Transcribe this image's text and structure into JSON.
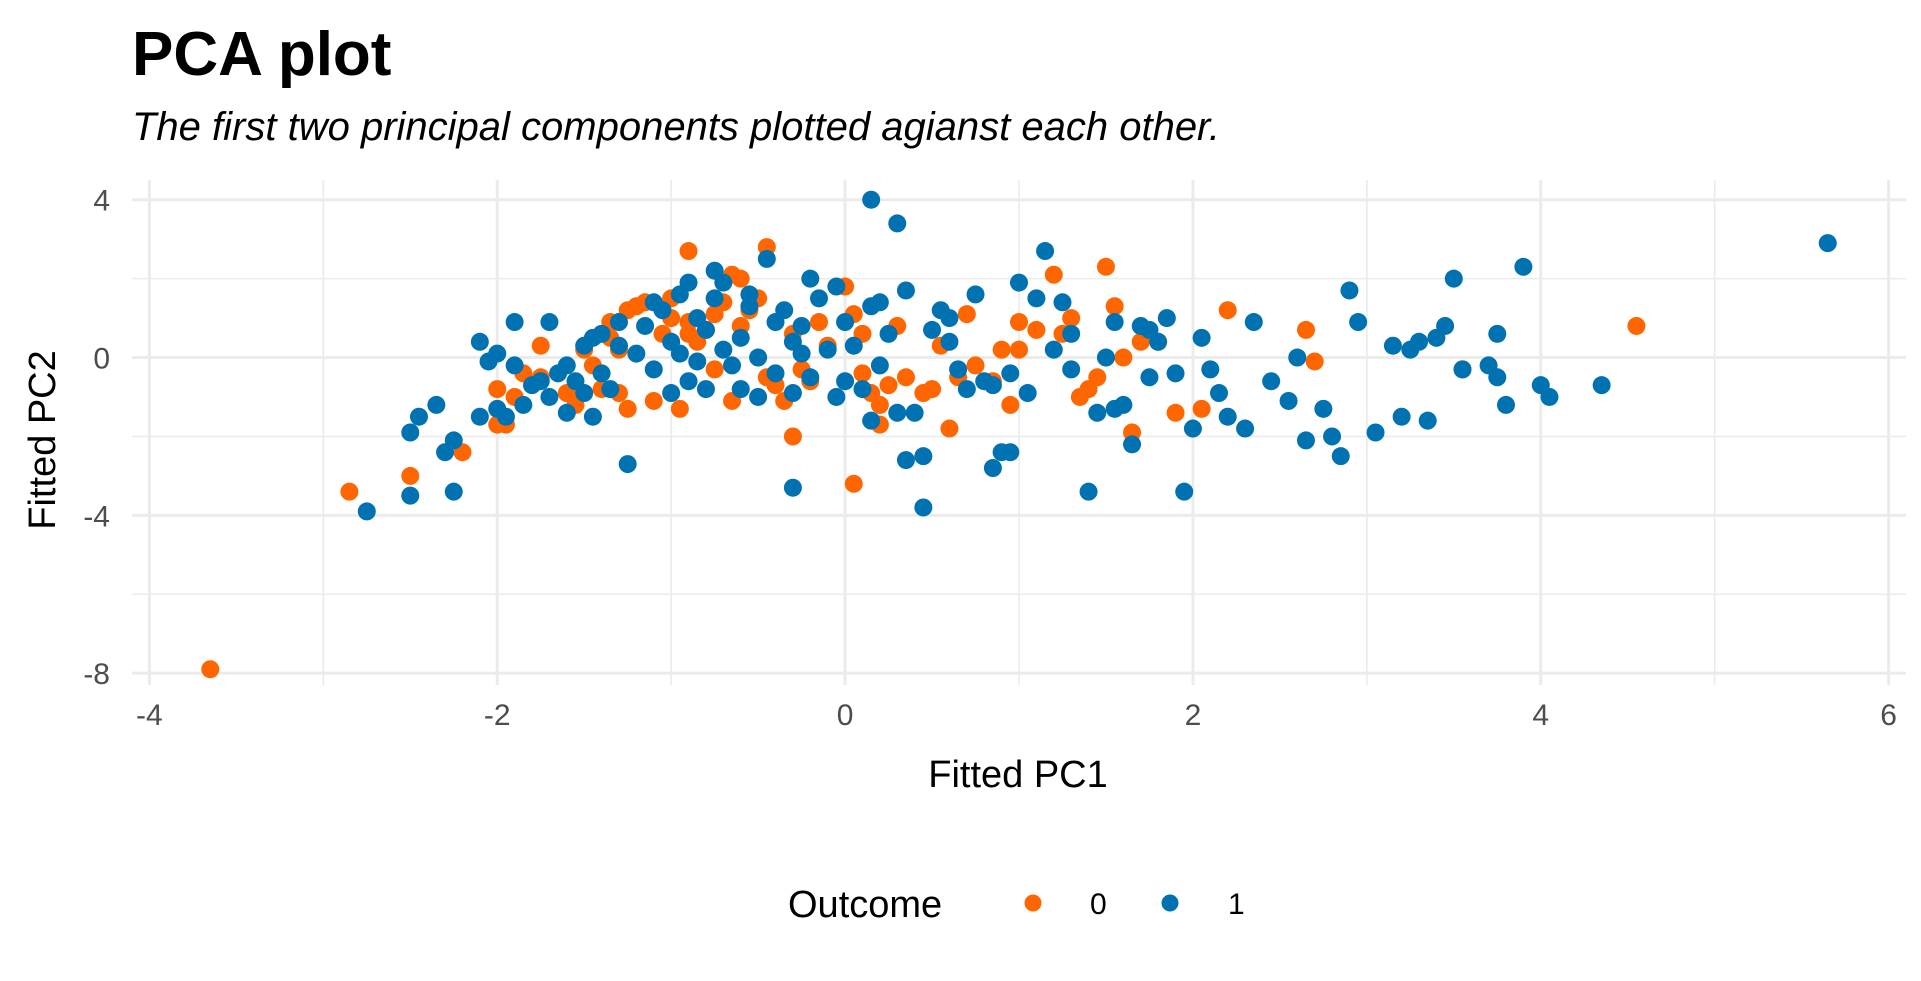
{
  "chart_data": {
    "type": "scatter",
    "title": "PCA plot",
    "subtitle": "The first two principal components plotted agianst each other.",
    "xlabel": "Fitted PC1",
    "ylabel": "Fitted PC2",
    "xlim": [
      -4.1,
      6.1
    ],
    "ylim": [
      -8.3,
      4.5
    ],
    "x_ticks": [
      -4,
      -2,
      0,
      2,
      4,
      6
    ],
    "y_ticks": [
      4,
      0,
      -4,
      -8
    ],
    "x_tick_labels": [
      "-4",
      "-2",
      "0",
      "2",
      "4",
      "6"
    ],
    "y_tick_labels": [
      "4",
      "0",
      "-4",
      "-8"
    ],
    "grid": true,
    "legend": {
      "title": "Outcome",
      "position": "bottom",
      "entries": [
        {
          "label": "0",
          "color": "#ff6600"
        },
        {
          "label": "1",
          "color": "#0072b2"
        }
      ]
    },
    "series": [
      {
        "name": "0",
        "color": "#ff6600",
        "points": [
          [
            -3.65,
            -7.9
          ],
          [
            -2.85,
            -3.4
          ],
          [
            -2.5,
            -3.0
          ],
          [
            -2.2,
            -2.4
          ],
          [
            -2.0,
            -1.7
          ],
          [
            -1.95,
            -1.7
          ],
          [
            -1.85,
            -0.4
          ],
          [
            -1.75,
            -0.5
          ],
          [
            -1.75,
            0.3
          ],
          [
            -1.6,
            -0.9
          ],
          [
            -1.55,
            -1.2
          ],
          [
            -1.45,
            -0.2
          ],
          [
            -1.4,
            -0.8
          ],
          [
            -1.35,
            0.5
          ],
          [
            -1.3,
            0.2
          ],
          [
            -1.3,
            -0.9
          ],
          [
            -1.25,
            -1.3
          ],
          [
            -1.25,
            1.2
          ],
          [
            -1.2,
            1.3
          ],
          [
            -1.15,
            1.4
          ],
          [
            -1.1,
            -1.1
          ],
          [
            -1.05,
            0.6
          ],
          [
            -1.0,
            1.0
          ],
          [
            -0.95,
            -1.3
          ],
          [
            -0.9,
            0.6
          ],
          [
            -0.9,
            0.9
          ],
          [
            -0.85,
            0.4
          ],
          [
            -0.8,
            0.7
          ],
          [
            -0.75,
            1.1
          ],
          [
            -0.75,
            -0.3
          ],
          [
            -0.7,
            1.4
          ],
          [
            -0.65,
            -1.1
          ],
          [
            -0.6,
            0.8
          ],
          [
            -0.55,
            1.2
          ],
          [
            -0.5,
            1.5
          ],
          [
            -0.45,
            -0.5
          ],
          [
            -0.4,
            -0.7
          ],
          [
            -0.35,
            -1.1
          ],
          [
            -0.3,
            0.6
          ],
          [
            -0.25,
            -0.3
          ],
          [
            -0.2,
            -0.6
          ],
          [
            -0.15,
            0.9
          ],
          [
            -0.1,
            0.3
          ],
          [
            0.0,
            1.8
          ],
          [
            0.05,
            1.1
          ],
          [
            0.1,
            0.6
          ],
          [
            0.1,
            -0.4
          ],
          [
            0.15,
            -0.9
          ],
          [
            0.2,
            -1.2
          ],
          [
            0.25,
            -0.7
          ],
          [
            0.3,
            0.8
          ],
          [
            0.35,
            -0.5
          ],
          [
            0.45,
            -0.9
          ],
          [
            0.5,
            -0.8
          ],
          [
            0.55,
            0.3
          ],
          [
            0.6,
            -1.8
          ],
          [
            0.65,
            -0.5
          ],
          [
            0.7,
            1.1
          ],
          [
            0.75,
            -0.2
          ],
          [
            0.85,
            -0.6
          ],
          [
            0.9,
            0.2
          ],
          [
            0.95,
            -1.2
          ],
          [
            1.0,
            0.9
          ],
          [
            1.0,
            0.2
          ],
          [
            1.1,
            0.7
          ],
          [
            1.2,
            2.1
          ],
          [
            1.25,
            0.6
          ],
          [
            1.3,
            1.0
          ],
          [
            1.35,
            -1.0
          ],
          [
            1.4,
            -0.8
          ],
          [
            1.45,
            -0.5
          ],
          [
            1.5,
            2.3
          ],
          [
            1.55,
            1.3
          ],
          [
            1.6,
            0.0
          ],
          [
            1.65,
            -1.9
          ],
          [
            1.7,
            0.4
          ],
          [
            1.8,
            0.4
          ],
          [
            1.9,
            -1.4
          ],
          [
            2.05,
            -1.3
          ],
          [
            2.2,
            1.2
          ],
          [
            2.65,
            0.7
          ],
          [
            2.7,
            -0.1
          ],
          [
            3.55,
            -0.3
          ],
          [
            4.55,
            0.8
          ],
          [
            -0.6,
            2.0
          ],
          [
            -0.45,
            2.8
          ],
          [
            -0.9,
            2.7
          ],
          [
            -0.65,
            2.1
          ],
          [
            -0.3,
            -2.0
          ],
          [
            0.05,
            -3.2
          ],
          [
            0.2,
            -1.7
          ],
          [
            -1.0,
            1.5
          ],
          [
            -1.35,
            0.9
          ],
          [
            -1.5,
            0.2
          ],
          [
            -2.0,
            -0.8
          ],
          [
            -1.9,
            -1.0
          ]
        ]
      },
      {
        "name": "1",
        "color": "#0072b2",
        "points": [
          [
            -2.75,
            -3.9
          ],
          [
            -2.5,
            -3.5
          ],
          [
            -2.5,
            -1.9
          ],
          [
            -2.45,
            -1.5
          ],
          [
            -2.35,
            -1.2
          ],
          [
            -2.3,
            -2.4
          ],
          [
            -2.25,
            -2.1
          ],
          [
            -2.25,
            -3.4
          ],
          [
            -2.1,
            -1.5
          ],
          [
            -2.1,
            0.4
          ],
          [
            -2.05,
            -0.1
          ],
          [
            -2.0,
            0.1
          ],
          [
            -2.0,
            -1.3
          ],
          [
            -1.95,
            -1.5
          ],
          [
            -1.9,
            -0.2
          ],
          [
            -1.9,
            0.9
          ],
          [
            -1.85,
            -1.2
          ],
          [
            -1.8,
            -0.7
          ],
          [
            -1.7,
            0.9
          ],
          [
            -1.7,
            -1.0
          ],
          [
            -1.65,
            -0.4
          ],
          [
            -1.6,
            -1.4
          ],
          [
            -1.55,
            -0.6
          ],
          [
            -1.5,
            0.3
          ],
          [
            -1.5,
            -0.9
          ],
          [
            -1.45,
            -1.5
          ],
          [
            -1.45,
            0.5
          ],
          [
            -1.4,
            -0.4
          ],
          [
            -1.4,
            0.6
          ],
          [
            -1.35,
            -0.8
          ],
          [
            -1.3,
            0.9
          ],
          [
            -1.25,
            -2.7
          ],
          [
            -1.2,
            0.1
          ],
          [
            -1.15,
            0.8
          ],
          [
            -1.1,
            -0.3
          ],
          [
            -1.05,
            1.2
          ],
          [
            -1.0,
            0.4
          ],
          [
            -1.0,
            -0.9
          ],
          [
            -0.95,
            1.6
          ],
          [
            -0.9,
            -0.6
          ],
          [
            -0.9,
            1.9
          ],
          [
            -0.85,
            -0.1
          ],
          [
            -0.85,
            1.0
          ],
          [
            -0.8,
            0.7
          ],
          [
            -0.8,
            -0.8
          ],
          [
            -0.75,
            1.5
          ],
          [
            -0.7,
            0.2
          ],
          [
            -0.7,
            1.9
          ],
          [
            -0.65,
            -0.2
          ],
          [
            -0.6,
            0.5
          ],
          [
            -0.6,
            -0.8
          ],
          [
            -0.55,
            1.3
          ],
          [
            -0.5,
            0.0
          ],
          [
            -0.5,
            -1.0
          ],
          [
            -0.45,
            2.5
          ],
          [
            -0.4,
            0.9
          ],
          [
            -0.4,
            -0.4
          ],
          [
            -0.35,
            1.2
          ],
          [
            -0.3,
            0.4
          ],
          [
            -0.3,
            -0.9
          ],
          [
            -0.25,
            0.1
          ],
          [
            -0.2,
            -0.5
          ],
          [
            -0.15,
            1.5
          ],
          [
            -0.1,
            0.2
          ],
          [
            -0.05,
            -1.0
          ],
          [
            0.0,
            -0.6
          ],
          [
            0.0,
            0.9
          ],
          [
            0.05,
            0.3
          ],
          [
            0.1,
            -0.8
          ],
          [
            0.15,
            4.0
          ],
          [
            0.15,
            1.3
          ],
          [
            0.2,
            -0.2
          ],
          [
            0.25,
            0.6
          ],
          [
            0.3,
            3.4
          ],
          [
            0.3,
            -1.4
          ],
          [
            0.35,
            1.7
          ],
          [
            0.4,
            -1.4
          ],
          [
            0.45,
            -2.5
          ],
          [
            0.45,
            -3.8
          ],
          [
            0.5,
            0.7
          ],
          [
            0.55,
            1.2
          ],
          [
            0.6,
            0.4
          ],
          [
            0.65,
            -0.3
          ],
          [
            0.7,
            -0.8
          ],
          [
            0.75,
            1.6
          ],
          [
            0.8,
            -0.6
          ],
          [
            0.85,
            -2.8
          ],
          [
            0.9,
            -2.4
          ],
          [
            0.95,
            -0.4
          ],
          [
            1.0,
            1.9
          ],
          [
            1.05,
            -0.9
          ],
          [
            1.1,
            1.5
          ],
          [
            1.15,
            2.7
          ],
          [
            1.2,
            0.2
          ],
          [
            1.25,
            1.4
          ],
          [
            1.3,
            -0.3
          ],
          [
            1.4,
            -3.4
          ],
          [
            1.45,
            -1.4
          ],
          [
            1.5,
            0.0
          ],
          [
            1.55,
            0.9
          ],
          [
            1.6,
            -1.2
          ],
          [
            1.65,
            -2.2
          ],
          [
            1.7,
            0.8
          ],
          [
            1.75,
            -0.5
          ],
          [
            1.8,
            0.4
          ],
          [
            1.85,
            1.0
          ],
          [
            1.9,
            -0.4
          ],
          [
            1.95,
            -3.4
          ],
          [
            2.0,
            -1.8
          ],
          [
            2.05,
            0.5
          ],
          [
            2.1,
            -0.3
          ],
          [
            2.15,
            -0.9
          ],
          [
            2.2,
            -1.5
          ],
          [
            2.3,
            -1.8
          ],
          [
            2.35,
            0.9
          ],
          [
            2.45,
            -0.6
          ],
          [
            2.55,
            -1.1
          ],
          [
            2.65,
            -2.1
          ],
          [
            2.75,
            -1.3
          ],
          [
            2.8,
            -2.0
          ],
          [
            2.85,
            -2.5
          ],
          [
            2.9,
            1.7
          ],
          [
            2.95,
            0.9
          ],
          [
            3.05,
            -1.9
          ],
          [
            3.15,
            0.3
          ],
          [
            3.2,
            -1.5
          ],
          [
            3.3,
            0.4
          ],
          [
            3.35,
            -1.6
          ],
          [
            3.4,
            0.5
          ],
          [
            3.45,
            0.8
          ],
          [
            3.5,
            2.0
          ],
          [
            3.55,
            -0.3
          ],
          [
            3.7,
            -0.2
          ],
          [
            3.75,
            0.6
          ],
          [
            3.8,
            -1.2
          ],
          [
            3.9,
            2.3
          ],
          [
            4.0,
            -0.7
          ],
          [
            4.05,
            -1.0
          ],
          [
            4.35,
            -0.7
          ],
          [
            5.65,
            2.9
          ],
          [
            -0.3,
            -3.3
          ],
          [
            0.15,
            -1.6
          ],
          [
            0.35,
            -2.6
          ],
          [
            0.95,
            -2.4
          ],
          [
            0.85,
            -0.7
          ],
          [
            -0.2,
            2.0
          ],
          [
            -0.55,
            1.6
          ],
          [
            -0.75,
            2.2
          ],
          [
            -1.1,
            1.4
          ],
          [
            -1.3,
            0.3
          ],
          [
            -1.6,
            -0.2
          ],
          [
            -1.75,
            -0.6
          ],
          [
            -0.95,
            0.1
          ],
          [
            -0.25,
            0.8
          ],
          [
            0.6,
            1.0
          ],
          [
            1.3,
            0.6
          ],
          [
            1.75,
            0.7
          ],
          [
            2.6,
            0.0
          ],
          [
            3.25,
            0.2
          ],
          [
            3.75,
            -0.5
          ],
          [
            1.55,
            -1.3
          ],
          [
            0.2,
            1.4
          ],
          [
            -0.05,
            1.8
          ]
        ]
      }
    ]
  }
}
